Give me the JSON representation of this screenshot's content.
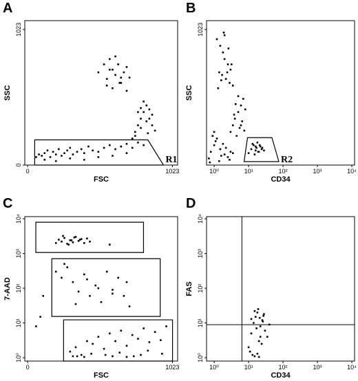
{
  "chart_data": [
    {
      "type": "scatter",
      "panel": "A",
      "x_label": "FSC",
      "y_label": "SSC",
      "xscale": "linear",
      "yscale": "linear",
      "xlim": [
        -20,
        1060
      ],
      "ylim": [
        0,
        1090
      ],
      "xticks": [
        0,
        1023
      ],
      "yticks": [
        0,
        1023
      ],
      "color": "#000000",
      "series": [
        {
          "x": [
            60,
            80,
            100,
            120,
            140,
            160,
            180,
            200,
            220,
            240,
            260,
            280,
            300,
            320,
            350,
            380,
            400,
            430,
            460,
            500,
            540,
            580,
            620,
            660,
            700,
            740,
            780,
            820,
            120,
            200,
            300,
            400,
            500,
            600,
            700
          ],
          "y": [
            60,
            80,
            70,
            90,
            110,
            60,
            100,
            80,
            120,
            70,
            90,
            110,
            130,
            80,
            100,
            120,
            90,
            140,
            110,
            100,
            130,
            150,
            120,
            140,
            160,
            130,
            170,
            150,
            40,
            30,
            50,
            40,
            60,
            70,
            90
          ]
        },
        {
          "x": [
            740,
            760,
            780,
            800,
            820,
            840,
            860,
            880,
            760,
            800,
            840,
            880,
            780,
            820,
            860,
            900,
            800,
            850
          ],
          "y": [
            200,
            250,
            300,
            350,
            400,
            450,
            420,
            380,
            220,
            280,
            330,
            300,
            400,
            480,
            350,
            260,
            430,
            240
          ]
        },
        {
          "x": [
            500,
            540,
            560,
            580,
            600,
            620,
            640,
            660,
            680,
            700,
            720,
            560,
            600,
            650,
            700,
            620,
            580,
            660
          ],
          "y": [
            700,
            760,
            650,
            800,
            720,
            680,
            760,
            620,
            700,
            740,
            660,
            600,
            580,
            620,
            560,
            820,
            720,
            660
          ]
        }
      ],
      "gates": [
        {
          "label": "R1",
          "points": [
            [
              50,
              190
            ],
            [
              850,
              190
            ],
            [
              960,
              0
            ],
            [
              50,
              0
            ]
          ]
        }
      ]
    },
    {
      "type": "scatter",
      "panel": "B",
      "x_label": "CD34",
      "y_label": "SSC",
      "xscale": "log",
      "yscale": "linear",
      "xlim": [
        0.6,
        12000
      ],
      "ylim": [
        0,
        1090
      ],
      "xticks": [
        {
          "value": 1,
          "label": "10⁰"
        },
        {
          "value": 10,
          "label": "10¹"
        },
        {
          "value": 100,
          "label": "10²"
        },
        {
          "value": 1000,
          "label": "10³"
        },
        {
          "value": 10000,
          "label": "10⁴"
        }
      ],
      "yticks": [
        1023
      ],
      "color": "#000000",
      "series": [
        {
          "x": [
            1.2,
            1.5,
            1.8,
            2,
            2.5,
            3,
            1.4,
            1.7,
            2.2,
            2.8,
            3.5,
            1.3,
            1.6,
            2.4,
            3.2,
            2.6,
            2,
            1.9
          ],
          "y": [
            950,
            900,
            850,
            800,
            760,
            720,
            700,
            680,
            650,
            620,
            600,
            580,
            640,
            700,
            760,
            880,
            980,
            1000
          ]
        },
        {
          "x": [
            3,
            3.5,
            4,
            5,
            6,
            7,
            8,
            4.5,
            5.5,
            6.5,
            3.8,
            4.2,
            5,
            6,
            7.5
          ],
          "y": [
            250,
            300,
            350,
            400,
            450,
            500,
            420,
            220,
            280,
            330,
            380,
            460,
            520,
            300,
            260
          ]
        },
        {
          "x": [
            0.7,
            0.8,
            1,
            1.2,
            1.5,
            2,
            2.5,
            3,
            0.9,
            1.1,
            1.4,
            1.8,
            2.2,
            2.8,
            3.5,
            1,
            1.6,
            0.75
          ],
          "y": [
            50,
            100,
            150,
            200,
            120,
            80,
            60,
            100,
            220,
            180,
            30,
            160,
            130,
            40,
            90,
            250,
            70,
            20
          ]
        },
        {
          "x": [
            10,
            12,
            14,
            16,
            18,
            20,
            22,
            25,
            28,
            13,
            15,
            17,
            19,
            21,
            24,
            16
          ],
          "y": [
            90,
            120,
            150,
            110,
            170,
            100,
            140,
            130,
            110,
            160,
            80,
            130,
            100,
            150,
            120,
            140
          ]
        }
      ],
      "gates": [
        {
          "label": "R2",
          "points": [
            [
              7.4,
              26
            ],
            [
              9.3,
              207
            ],
            [
              47.6,
              207
            ],
            [
              75.7,
              26
            ]
          ]
        }
      ]
    },
    {
      "type": "scatter",
      "panel": "C",
      "x_label": "FSC",
      "y_label": "7-AAD",
      "xscale": "linear",
      "yscale": "log",
      "xlim": [
        -20,
        1060
      ],
      "ylim": [
        0.8,
        11500
      ],
      "xticks": [
        0,
        1023
      ],
      "yticks": [
        {
          "value": 1,
          "label": "10⁰"
        },
        {
          "value": 10,
          "label": "10¹"
        },
        {
          "value": 100,
          "label": "10²"
        },
        {
          "value": 1000,
          "label": "10³"
        },
        {
          "value": 10000,
          "label": "10⁴"
        }
      ],
      "color": "#000000",
      "series": [
        {
          "x": [
            200,
            220,
            240,
            260,
            280,
            300,
            320,
            340,
            360,
            380,
            400,
            420,
            440,
            250,
            290,
            330,
            370,
            310,
            580
          ],
          "y": [
            2000,
            2500,
            2200,
            2800,
            1900,
            2400,
            2100,
            3000,
            2300,
            2600,
            2000,
            2700,
            2200,
            3200,
            1800,
            2900,
            2500,
            2400,
            1800
          ]
        },
        {
          "x": [
            200,
            240,
            280,
            320,
            360,
            400,
            440,
            480,
            520,
            560,
            600,
            640,
            680,
            720,
            260,
            340,
            420,
            500,
            600,
            700,
            110,
            90,
            60
          ],
          "y": [
            300,
            200,
            400,
            150,
            80,
            250,
            60,
            120,
            40,
            300,
            90,
            200,
            60,
            30,
            500,
            35,
            180,
            100,
            70,
            150,
            60,
            15,
            8
          ]
        },
        {
          "x": [
            300,
            340,
            380,
            420,
            460,
            500,
            540,
            580,
            620,
            660,
            700,
            740,
            780,
            820,
            860,
            900,
            940,
            980,
            350,
            450,
            550,
            650,
            750,
            850,
            950,
            400,
            600,
            800,
            320,
            700
          ],
          "y": [
            1.5,
            2,
            1.2,
            3,
            2.5,
            4,
            1.8,
            5,
            3,
            6,
            2.2,
            4.5,
            3.5,
            7,
            2.8,
            5.5,
            3.2,
            8,
            1.1,
            1.3,
            1.2,
            1.4,
            1.1,
            1.6,
            1.3,
            1.05,
            1.1,
            1.2,
            1.1,
            1.05
          ]
        }
      ],
      "gates": [
        {
          "points": [
            [
              58,
              7940
            ],
            [
              819,
              7940
            ],
            [
              819,
              1070
            ],
            [
              58,
              1070
            ]
          ]
        },
        {
          "points": [
            [
              171,
              710
            ],
            [
              937,
              710
            ],
            [
              937,
              15.4
            ],
            [
              171,
              15.4
            ]
          ]
        },
        {
          "points": [
            [
              254,
              12.3
            ],
            [
              1024,
              12.3
            ],
            [
              1024,
              0.8
            ],
            [
              254,
              0.8
            ]
          ]
        }
      ]
    },
    {
      "type": "scatter",
      "panel": "D",
      "x_label": "CD34",
      "y_label": "FAS",
      "xscale": "log",
      "yscale": "log",
      "xlim": [
        0.6,
        12000
      ],
      "ylim": [
        0.8,
        11500
      ],
      "xticks": [
        {
          "value": 1,
          "label": "10⁰"
        },
        {
          "value": 10,
          "label": "10¹"
        },
        {
          "value": 100,
          "label": "10²"
        },
        {
          "value": 1000,
          "label": "10³"
        },
        {
          "value": 10000,
          "label": "10⁴"
        }
      ],
      "yticks": [
        {
          "value": 1,
          "label": "10⁰"
        },
        {
          "value": 10,
          "label": "10¹"
        },
        {
          "value": 100,
          "label": "10²"
        },
        {
          "value": 1000,
          "label": "10³"
        },
        {
          "value": 10000,
          "label": "10⁴"
        }
      ],
      "color": "#000000",
      "quadrant_x": 6.4,
      "quadrant_y": 8.9,
      "series": [
        {
          "x": [
            10,
            12,
            14,
            16,
            18,
            20,
            22,
            25,
            28,
            30,
            35,
            40,
            11,
            13,
            15,
            17,
            19,
            21,
            24,
            27,
            15,
            18,
            22,
            26,
            12,
            20
          ],
          "y": [
            2,
            5,
            10,
            15,
            20,
            3,
            8,
            12,
            18,
            6,
            4,
            9,
            1.5,
            1.2,
            1.1,
            7,
            25,
            14,
            2.5,
            16,
            22,
            1.3,
            4,
            11,
            13,
            1.05
          ]
        }
      ]
    }
  ]
}
